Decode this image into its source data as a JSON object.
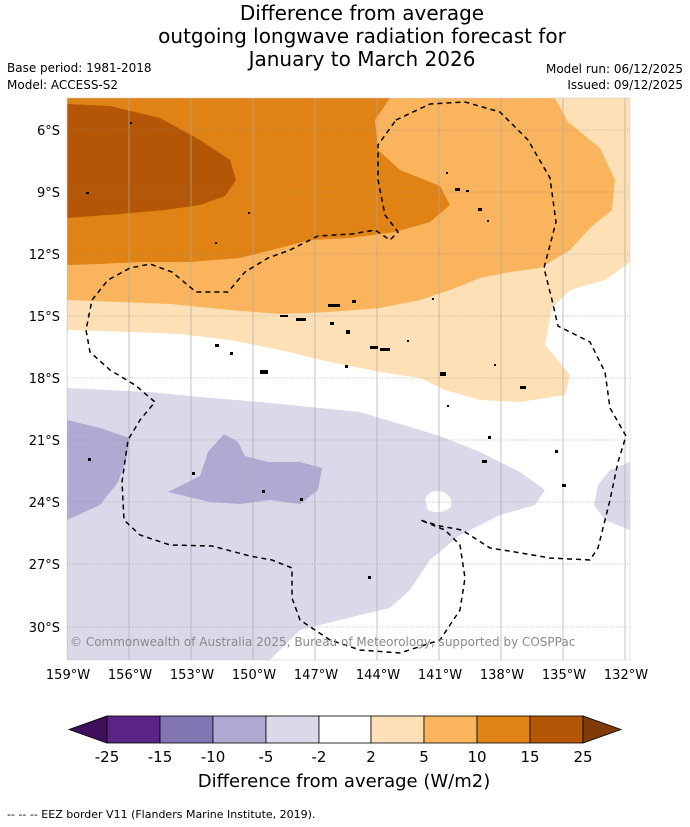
{
  "title": {
    "line1": "Difference from average",
    "line2": "outgoing longwave radiation forecast for",
    "line3": "January to March 2026"
  },
  "meta": {
    "base_period": "Base period: 1981-2018",
    "model": "Model: ACCESS-S2",
    "model_run": "Model run: 06/12/2025",
    "issued": "Issued: 09/12/2025"
  },
  "map": {
    "lat_labels": [
      "6°S",
      "9°S",
      "12°S",
      "15°S",
      "18°S",
      "21°S",
      "24°S",
      "27°S",
      "30°S"
    ],
    "lon_labels": [
      "159°W",
      "156°W",
      "153°W",
      "150°W",
      "147°W",
      "144°W",
      "141°W",
      "138°W",
      "135°W",
      "132°W"
    ],
    "copyright": "© Commonwealth of Australia 2025, Bureau of Meteorology, supported by COSPPac"
  },
  "colorbar": {
    "ticks": [
      "-25",
      "-15",
      "-10",
      "-5",
      "-2",
      "2",
      "5",
      "10",
      "15",
      "25"
    ],
    "colors": [
      "#3f0f5c",
      "#5a2487",
      "#8276b2",
      "#b0a9d2",
      "#d9d9ea",
      "#ffffff",
      "#fde0b5",
      "#fbb45e",
      "#e08314",
      "#b35706",
      "#7f3b08"
    ],
    "label": "Difference from average (W/m2)"
  },
  "footer": {
    "eez_legend": "--  --  -- EEZ border V11 (Flanders Marine Institute, 2019)."
  }
}
